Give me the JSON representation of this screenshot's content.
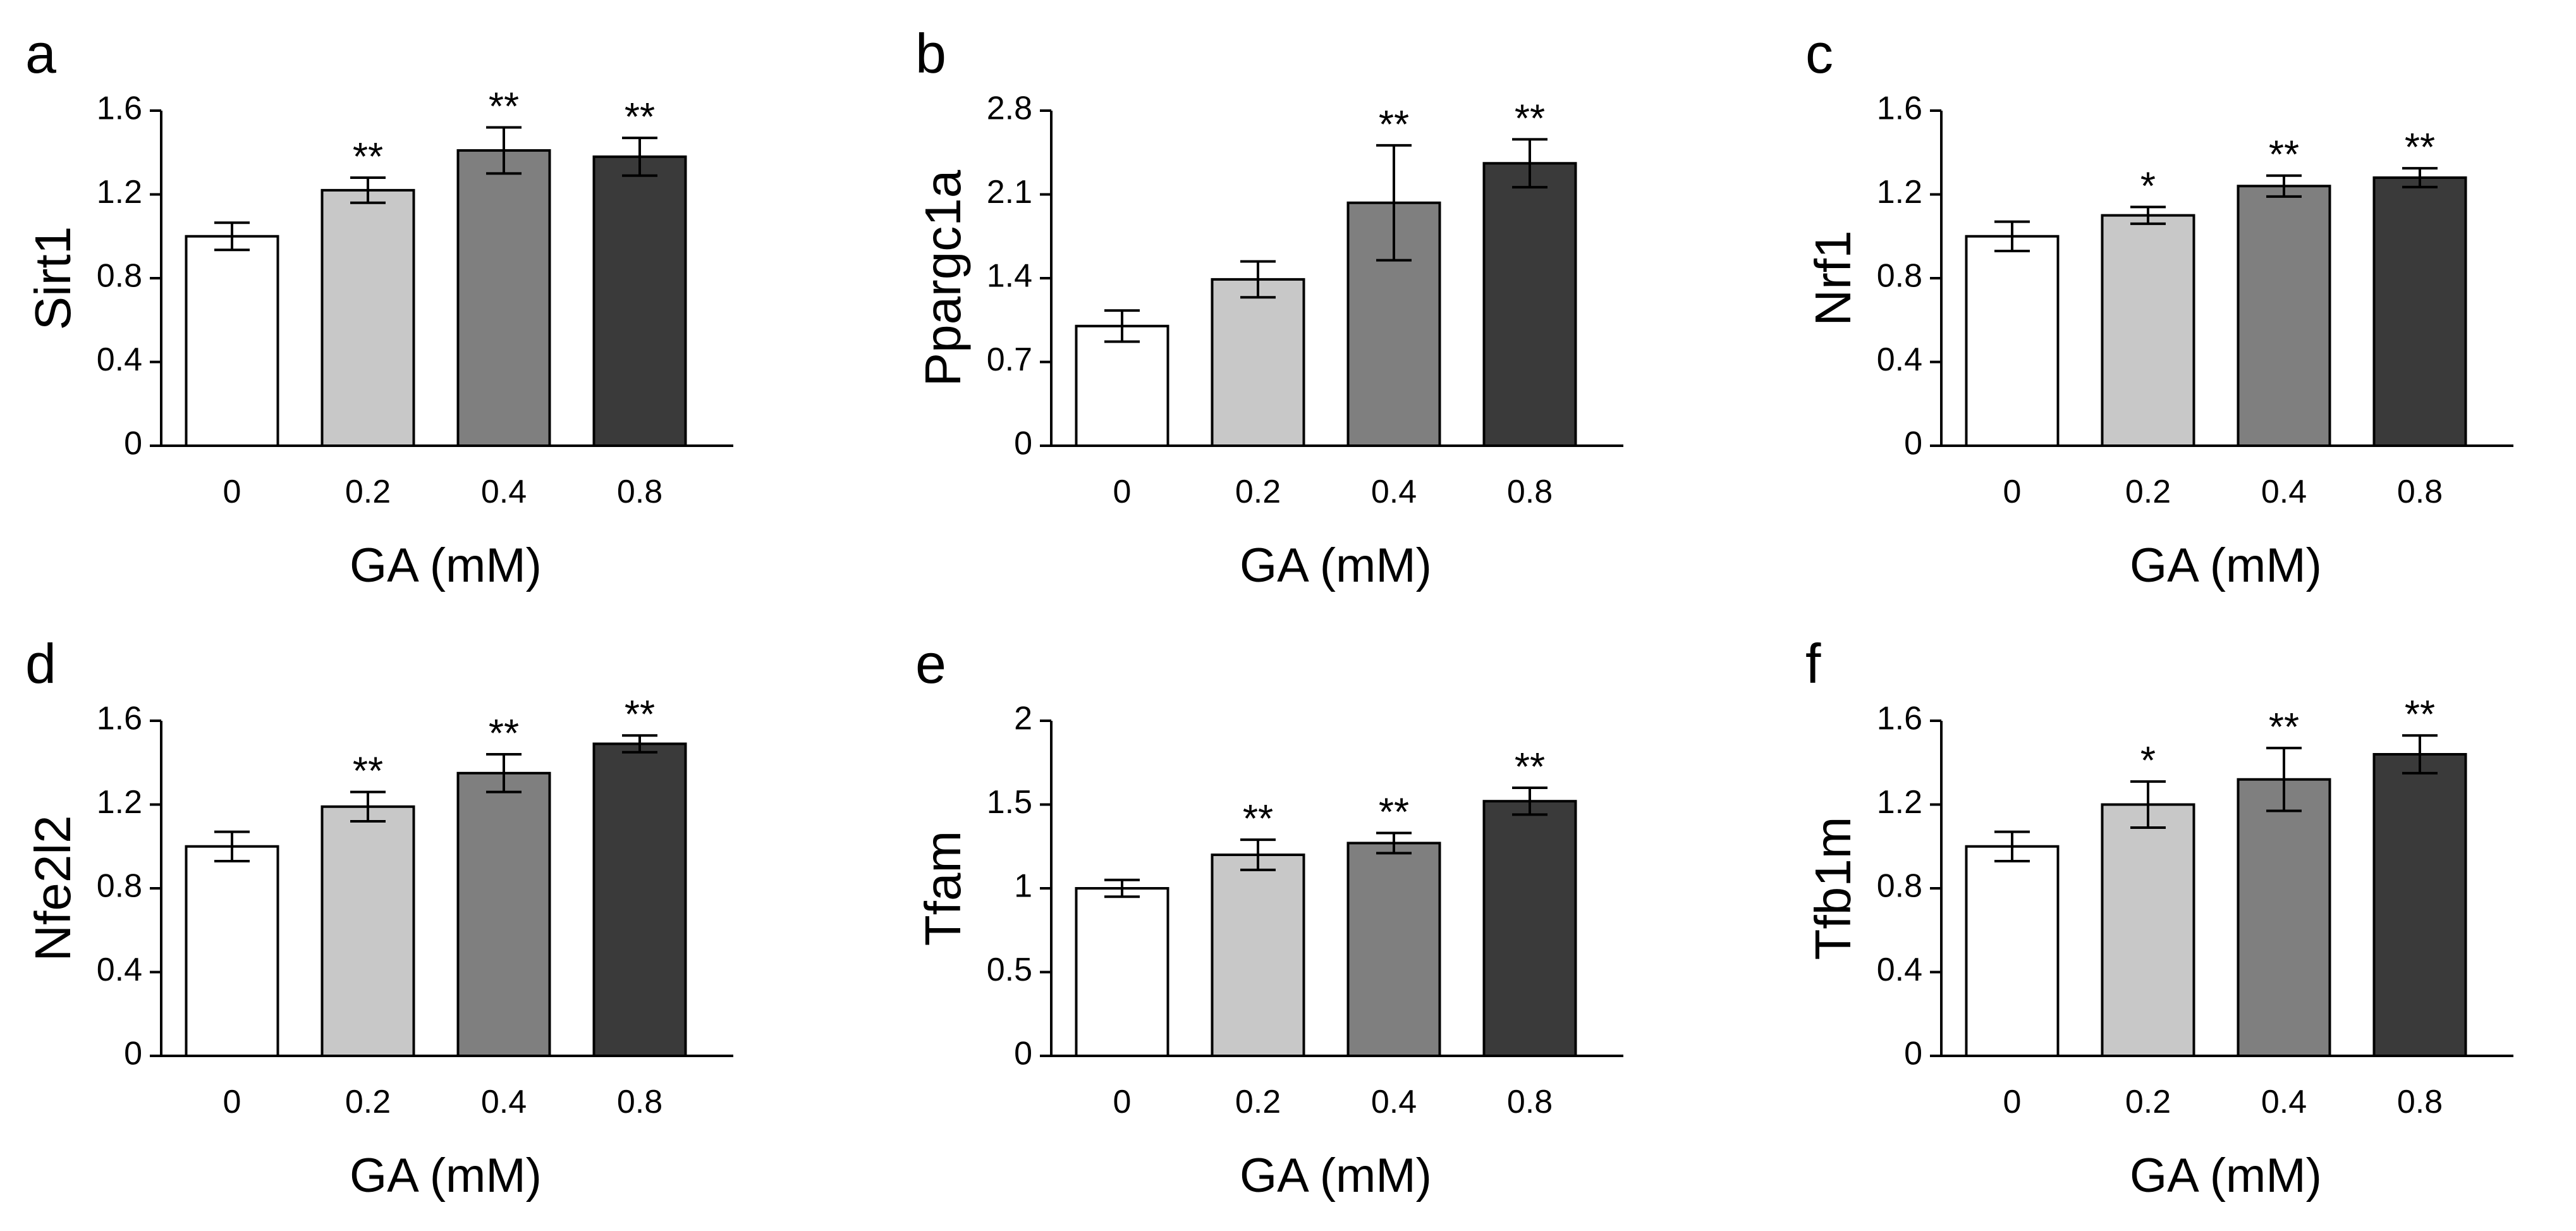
{
  "chart_data": [
    {
      "panel_label": "a",
      "type": "bar",
      "title": "",
      "xlabel": "GA (mM)",
      "ylabel": "Sirt1",
      "categories": [
        "0",
        "0.2",
        "0.4",
        "0.8"
      ],
      "values": [
        1.0,
        1.22,
        1.41,
        1.38
      ],
      "errors": [
        0.065,
        0.06,
        0.11,
        0.09
      ],
      "significance": [
        "",
        "**",
        "**",
        "**"
      ],
      "ylim": [
        0,
        1.6
      ],
      "yticks": [
        0,
        0.4,
        0.8,
        1.2,
        1.6
      ],
      "ytick_labels": [
        "0",
        "0.4",
        "0.8",
        "1.2",
        "1.6"
      ],
      "grid": false,
      "bar_colors": [
        "#ffffff",
        "#c8c8c8",
        "#7f7f7f",
        "#3a3a3a"
      ]
    },
    {
      "panel_label": "b",
      "type": "bar",
      "title": "",
      "xlabel": "GA (mM)",
      "ylabel": "Ppargc1a",
      "categories": [
        "0",
        "0.2",
        "0.4",
        "0.8"
      ],
      "values": [
        1.0,
        1.39,
        2.03,
        2.36
      ],
      "errors": [
        0.13,
        0.15,
        0.48,
        0.2
      ],
      "significance": [
        "",
        "",
        "**",
        "**"
      ],
      "ylim": [
        0,
        2.8
      ],
      "yticks": [
        0,
        0.7,
        1.4,
        2.1,
        2.8
      ],
      "ytick_labels": [
        "0",
        "0.7",
        "1.4",
        "2.1",
        "2.8"
      ],
      "grid": false,
      "bar_colors": [
        "#ffffff",
        "#c8c8c8",
        "#7f7f7f",
        "#3a3a3a"
      ]
    },
    {
      "panel_label": "c",
      "type": "bar",
      "title": "",
      "xlabel": "GA (mM)",
      "ylabel": "Nrf1",
      "categories": [
        "0",
        "0.2",
        "0.4",
        "0.8"
      ],
      "values": [
        1.0,
        1.1,
        1.24,
        1.28
      ],
      "errors": [
        0.07,
        0.04,
        0.05,
        0.045
      ],
      "significance": [
        "",
        "*",
        "**",
        "**"
      ],
      "ylim": [
        0,
        1.6
      ],
      "yticks": [
        0,
        0.4,
        0.8,
        1.2,
        1.6
      ],
      "ytick_labels": [
        "0",
        "0.4",
        "0.8",
        "1.2",
        "1.6"
      ],
      "grid": false,
      "bar_colors": [
        "#ffffff",
        "#c8c8c8",
        "#7f7f7f",
        "#3a3a3a"
      ]
    },
    {
      "panel_label": "d",
      "type": "bar",
      "title": "",
      "xlabel": "GA (mM)",
      "ylabel": "Nfe2l2",
      "categories": [
        "0",
        "0.2",
        "0.4",
        "0.8"
      ],
      "values": [
        1.0,
        1.19,
        1.35,
        1.49
      ],
      "errors": [
        0.07,
        0.07,
        0.09,
        0.04
      ],
      "significance": [
        "",
        "**",
        "**",
        "**"
      ],
      "ylim": [
        0,
        1.6
      ],
      "yticks": [
        0,
        0.4,
        0.8,
        1.2,
        1.6
      ],
      "ytick_labels": [
        "0",
        "0.4",
        "0.8",
        "1.2",
        "1.6"
      ],
      "grid": false,
      "bar_colors": [
        "#ffffff",
        "#c8c8c8",
        "#7f7f7f",
        "#3a3a3a"
      ]
    },
    {
      "panel_label": "e",
      "type": "bar",
      "title": "",
      "xlabel": "GA (mM)",
      "ylabel": "Tfam",
      "categories": [
        "0",
        "0.2",
        "0.4",
        "0.8"
      ],
      "values": [
        1.0,
        1.2,
        1.27,
        1.52
      ],
      "errors": [
        0.05,
        0.09,
        0.06,
        0.08
      ],
      "significance": [
        "",
        "**",
        "**",
        "**"
      ],
      "ylim": [
        0,
        2
      ],
      "yticks": [
        0,
        0.5,
        1,
        1.5,
        2
      ],
      "ytick_labels": [
        "0",
        "0.5",
        "1",
        "1.5",
        "2"
      ],
      "grid": false,
      "bar_colors": [
        "#ffffff",
        "#c8c8c8",
        "#7f7f7f",
        "#3a3a3a"
      ]
    },
    {
      "panel_label": "f",
      "type": "bar",
      "title": "",
      "xlabel": "GA (mM)",
      "ylabel": "Tfb1m",
      "categories": [
        "0",
        "0.2",
        "0.4",
        "0.8"
      ],
      "values": [
        1.0,
        1.2,
        1.32,
        1.44
      ],
      "errors": [
        0.07,
        0.11,
        0.15,
        0.09
      ],
      "significance": [
        "",
        "*",
        "**",
        "**"
      ],
      "ylim": [
        0,
        1.6
      ],
      "yticks": [
        0,
        0.4,
        0.8,
        1.2,
        1.6
      ],
      "ytick_labels": [
        "0",
        "0.4",
        "0.8",
        "1.2",
        "1.6"
      ],
      "grid": false,
      "bar_colors": [
        "#ffffff",
        "#c8c8c8",
        "#7f7f7f",
        "#3a3a3a"
      ]
    }
  ]
}
